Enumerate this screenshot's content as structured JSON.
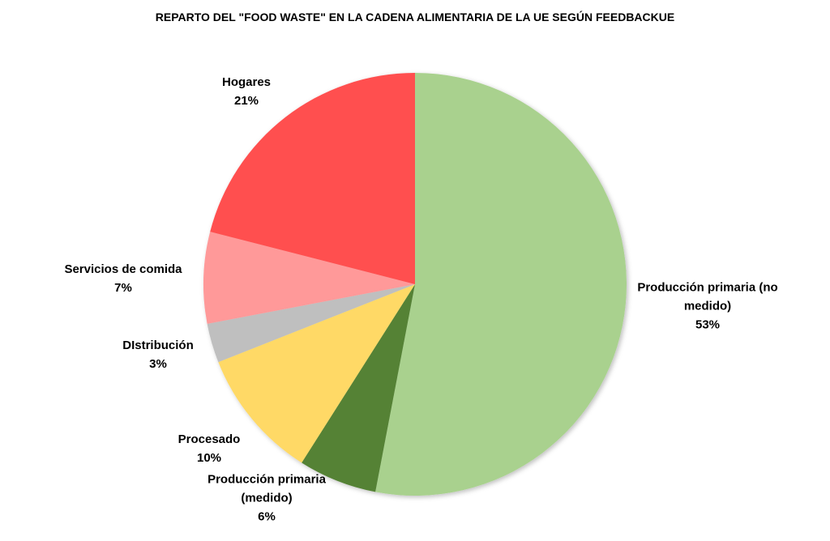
{
  "chart_data": {
    "type": "pie",
    "title": "REPARTO DEL \"FOOD WASTE\" EN LA CADENA ALIMENTARIA DE LA UE SEGÚN FEEDBACKUE",
    "categories": [
      "Producción primaria (no medido)",
      "Producción primaria (medido)",
      "Procesado",
      "DIstribución",
      "Servicios de comida",
      "Hogares"
    ],
    "values": [
      53,
      6,
      10,
      3,
      7,
      21
    ],
    "value_labels": [
      "53%",
      "6%",
      "10%",
      "3%",
      "7%",
      "21%"
    ],
    "colors": [
      "#a9d18e",
      "#548235",
      "#ffd966",
      "#bfbfbf",
      "#ff9999",
      "#ff5050"
    ]
  }
}
